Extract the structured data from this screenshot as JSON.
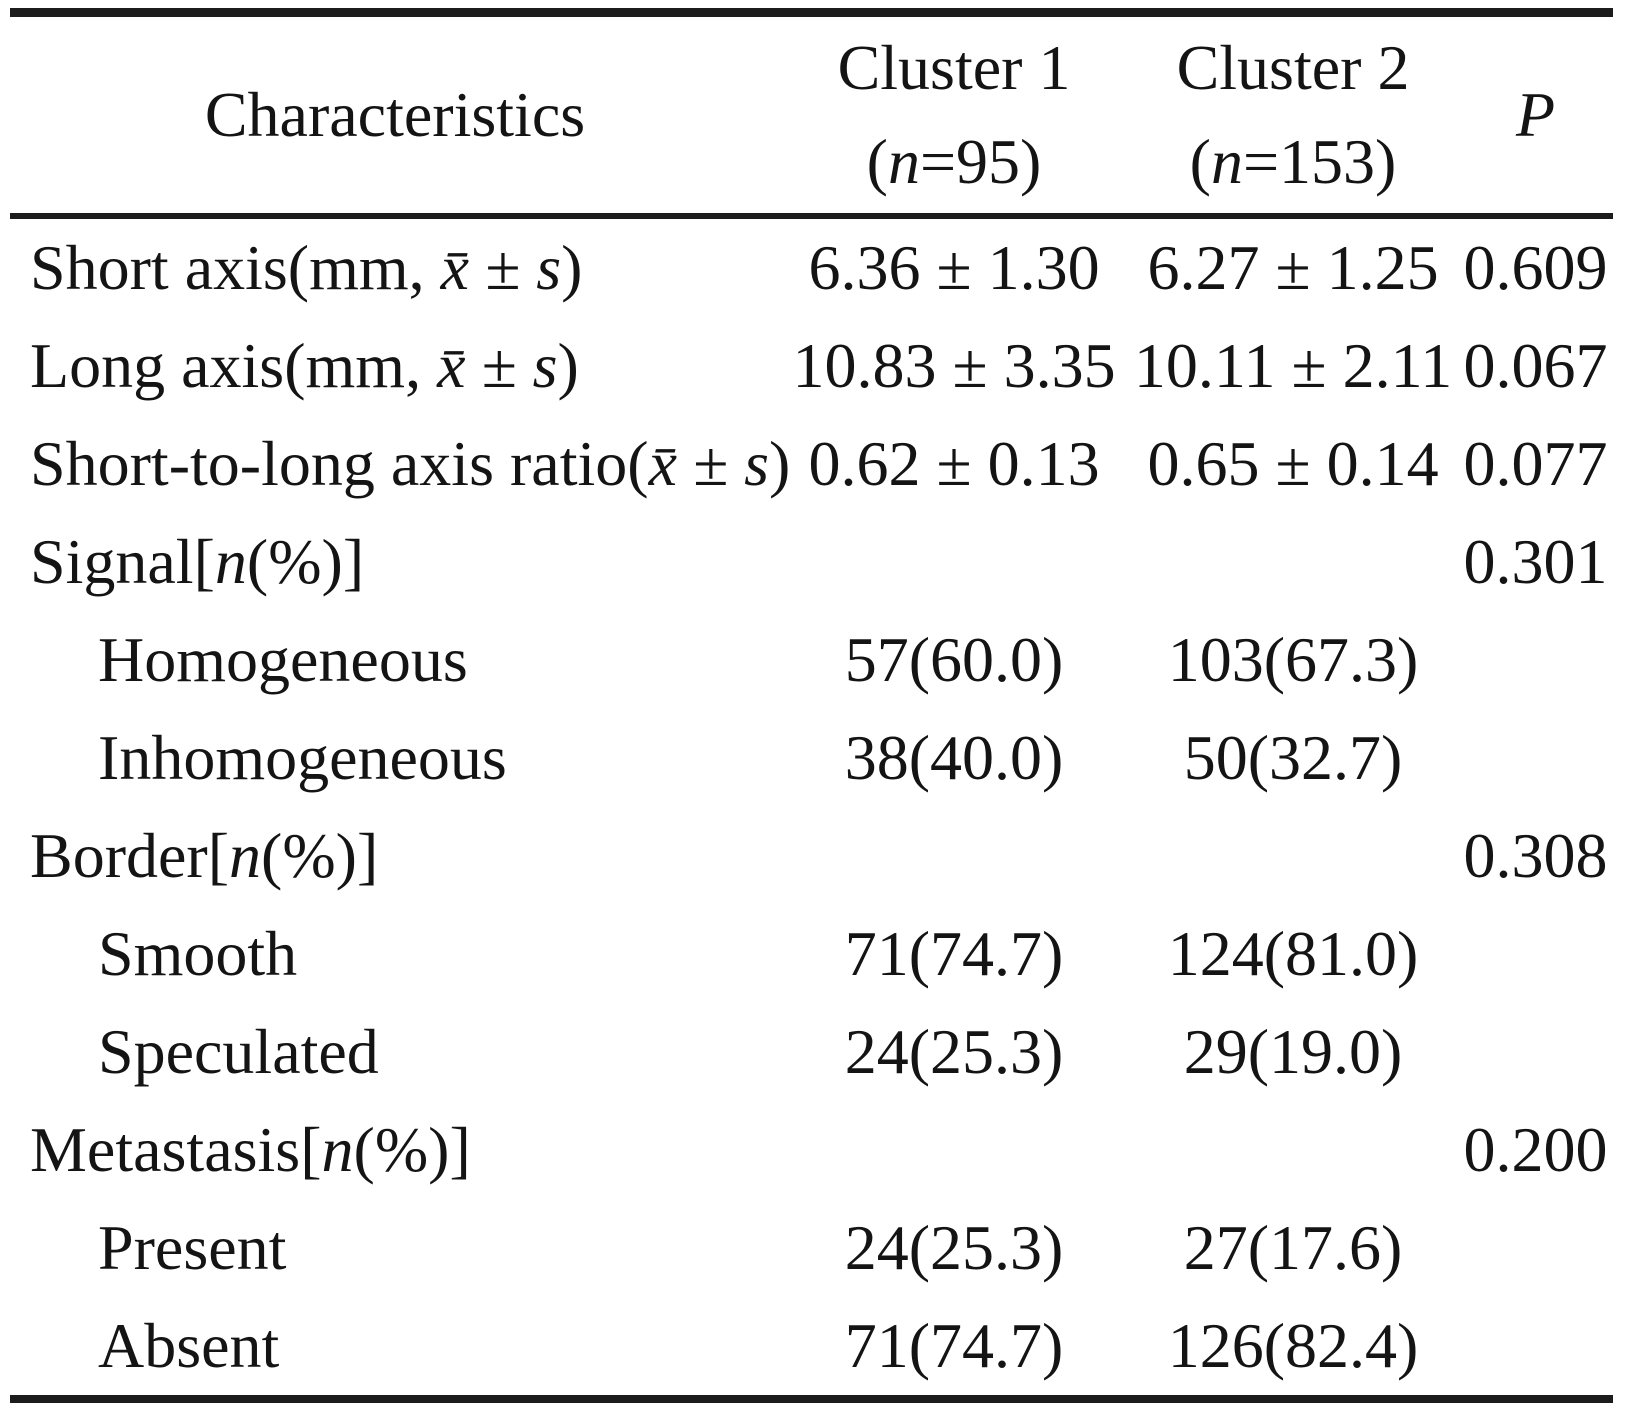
{
  "header": {
    "characteristics": "Characteristics",
    "cluster1": {
      "title": "Cluster 1",
      "paren_open": "(",
      "n_italic": "n",
      "n_value": "=95)"
    },
    "cluster2": {
      "title": "Cluster 2",
      "paren_open": "(",
      "n_italic": "n",
      "n_value": "=153)"
    },
    "p": "P"
  },
  "rows": [
    {
      "label": "Short axis(mm, ",
      "label_italic": "x̄ ± s",
      "label_suffix": ")",
      "cluster1": "6.36 ± 1.30",
      "cluster2": "6.27 ± 1.25",
      "p": "0.609"
    },
    {
      "label": "Long axis(mm, ",
      "label_italic": "x̄ ± s",
      "label_suffix": ")",
      "cluster1": "10.83 ± 3.35",
      "cluster2": "10.11 ± 2.11",
      "p": "0.067"
    },
    {
      "label": "Short-to-long axis ratio(",
      "label_italic": "x̄ ± s",
      "label_suffix": ")",
      "cluster1": "0.62 ± 0.13",
      "cluster2": "0.65 ± 0.14",
      "p": "0.077"
    },
    {
      "label": "Signal[",
      "label_italic": "n",
      "label_suffix": "(%)]",
      "cluster1": "",
      "cluster2": "",
      "p": "0.301"
    },
    {
      "label": "Homogeneous",
      "label_italic": "",
      "label_suffix": "",
      "cluster1": "57(60.0)",
      "cluster2": "103(67.3)",
      "p": ""
    },
    {
      "label": "Inhomogeneous",
      "label_italic": "",
      "label_suffix": "",
      "cluster1": "38(40.0)",
      "cluster2": "50(32.7)",
      "p": ""
    },
    {
      "label": "Border[",
      "label_italic": "n",
      "label_suffix": "(%)]",
      "cluster1": "",
      "cluster2": "",
      "p": "0.308"
    },
    {
      "label": "Smooth",
      "label_italic": "",
      "label_suffix": "",
      "cluster1": "71(74.7)",
      "cluster2": "124(81.0)",
      "p": ""
    },
    {
      "label": "Speculated",
      "label_italic": "",
      "label_suffix": "",
      "cluster1": "24(25.3)",
      "cluster2": "29(19.0)",
      "p": ""
    },
    {
      "label": "Metastasis[",
      "label_italic": "n",
      "label_suffix": "(%)]",
      "cluster1": "",
      "cluster2": "",
      "p": "0.200"
    },
    {
      "label": "Present",
      "label_italic": "",
      "label_suffix": "",
      "cluster1": "24(25.3)",
      "cluster2": "27(17.6)",
      "p": ""
    },
    {
      "label": "Absent",
      "label_italic": "",
      "label_suffix": "",
      "cluster1": "71(74.7)",
      "cluster2": "126(82.4)",
      "p": ""
    }
  ],
  "colors": {
    "rule": "#1c1c1c",
    "text": "#141414",
    "background": "#ffffff"
  }
}
